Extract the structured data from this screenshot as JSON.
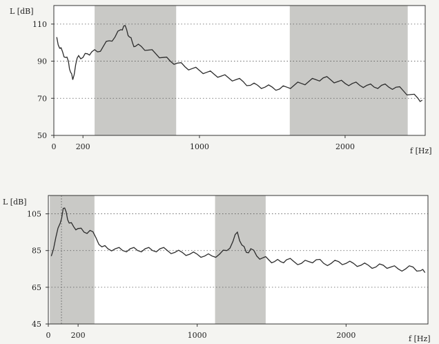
{
  "colors": {
    "paper": "#f4f4f1",
    "band": "#c9c9c6",
    "line": "#2b2b2b",
    "grid": "#555555"
  },
  "chart_data": [
    {
      "type": "line",
      "ylabel": "L [dB]",
      "xlabel": "f [Hz]",
      "xlim": [
        0,
        2550
      ],
      "ylim": [
        50,
        120
      ],
      "x_ticks": [
        0,
        200,
        1000,
        2000
      ],
      "x_tick_labels": [
        "0",
        "200",
        "1000",
        "2000"
      ],
      "y_ticks": [
        50,
        70,
        90,
        110
      ],
      "y_tick_labels": [
        "50",
        "70",
        "90",
        "110"
      ],
      "grid": "dotted horizontal",
      "shaded_bands": [
        [
          280,
          840
        ],
        [
          1620,
          2430
        ]
      ],
      "series": [
        {
          "x": [
            20,
            40,
            60,
            80,
            100,
            115,
            130,
            150,
            170,
            200,
            230,
            260,
            300,
            340,
            380,
            420,
            460,
            480,
            500,
            520,
            540,
            560,
            600,
            650,
            700,
            750,
            800,
            850,
            900,
            950,
            1000,
            1050,
            1100,
            1150,
            1200,
            1250,
            1300,
            1350,
            1400,
            1450,
            1500,
            1550,
            1600,
            1650,
            1700,
            1750,
            1800,
            1850,
            1900,
            1950,
            2000,
            2050,
            2100,
            2150,
            2200,
            2250,
            2300,
            2350,
            2400,
            2450,
            2500,
            2530
          ],
          "y": [
            103,
            97,
            95,
            92,
            90,
            84,
            80,
            88,
            93,
            92,
            94,
            95,
            95,
            98,
            101,
            103,
            107,
            109,
            107,
            103,
            100,
            98,
            98,
            96,
            94,
            92,
            90,
            89,
            87,
            86,
            85,
            84,
            83,
            82,
            81,
            80,
            79,
            77,
            77,
            76,
            76,
            75,
            76,
            77,
            78,
            79,
            80,
            81,
            80,
            79,
            78,
            78,
            77,
            77,
            76,
            77,
            76,
            76,
            74,
            72,
            70,
            69
          ]
        }
      ]
    },
    {
      "type": "line",
      "ylabel": "L [dB]",
      "xlabel": "f [Hz]",
      "xlim": [
        0,
        2550
      ],
      "ylim": [
        45,
        115
      ],
      "x_ticks": [
        0,
        200,
        1000,
        2000
      ],
      "x_tick_labels": [
        "0",
        "200",
        "1000",
        "2000"
      ],
      "y_ticks": [
        45,
        65,
        85,
        105
      ],
      "y_tick_labels": [
        "45",
        "65",
        "85",
        "105"
      ],
      "grid": "dotted horizontal",
      "shaded_bands": [
        [
          10,
          310
        ],
        [
          1120,
          1460
        ]
      ],
      "series": [
        {
          "x": [
            20,
            50,
            80,
            100,
            120,
            140,
            170,
            200,
            240,
            280,
            320,
            360,
            400,
            450,
            500,
            550,
            600,
            650,
            700,
            750,
            800,
            850,
            900,
            950,
            1000,
            1050,
            1100,
            1150,
            1200,
            1240,
            1270,
            1300,
            1330,
            1360,
            1400,
            1440,
            1480,
            1520,
            1560,
            1600,
            1650,
            1700,
            1750,
            1800,
            1850,
            1900,
            1950,
            2000,
            2050,
            2100,
            2150,
            2200,
            2250,
            2300,
            2350,
            2400,
            2450,
            2500,
            2530
          ],
          "y": [
            82,
            92,
            100,
            108,
            106,
            100,
            98,
            97,
            95,
            96,
            92,
            87,
            86,
            86,
            85,
            86,
            85,
            86,
            85,
            86,
            85,
            84,
            84,
            83,
            83,
            82,
            82,
            83,
            85,
            90,
            95,
            88,
            84,
            86,
            82,
            81,
            80,
            79,
            79,
            80,
            79,
            78,
            79,
            80,
            78,
            78,
            79,
            78,
            78,
            77,
            77,
            76,
            77,
            76,
            75,
            75,
            76,
            74,
            73
          ]
        }
      ]
    }
  ]
}
